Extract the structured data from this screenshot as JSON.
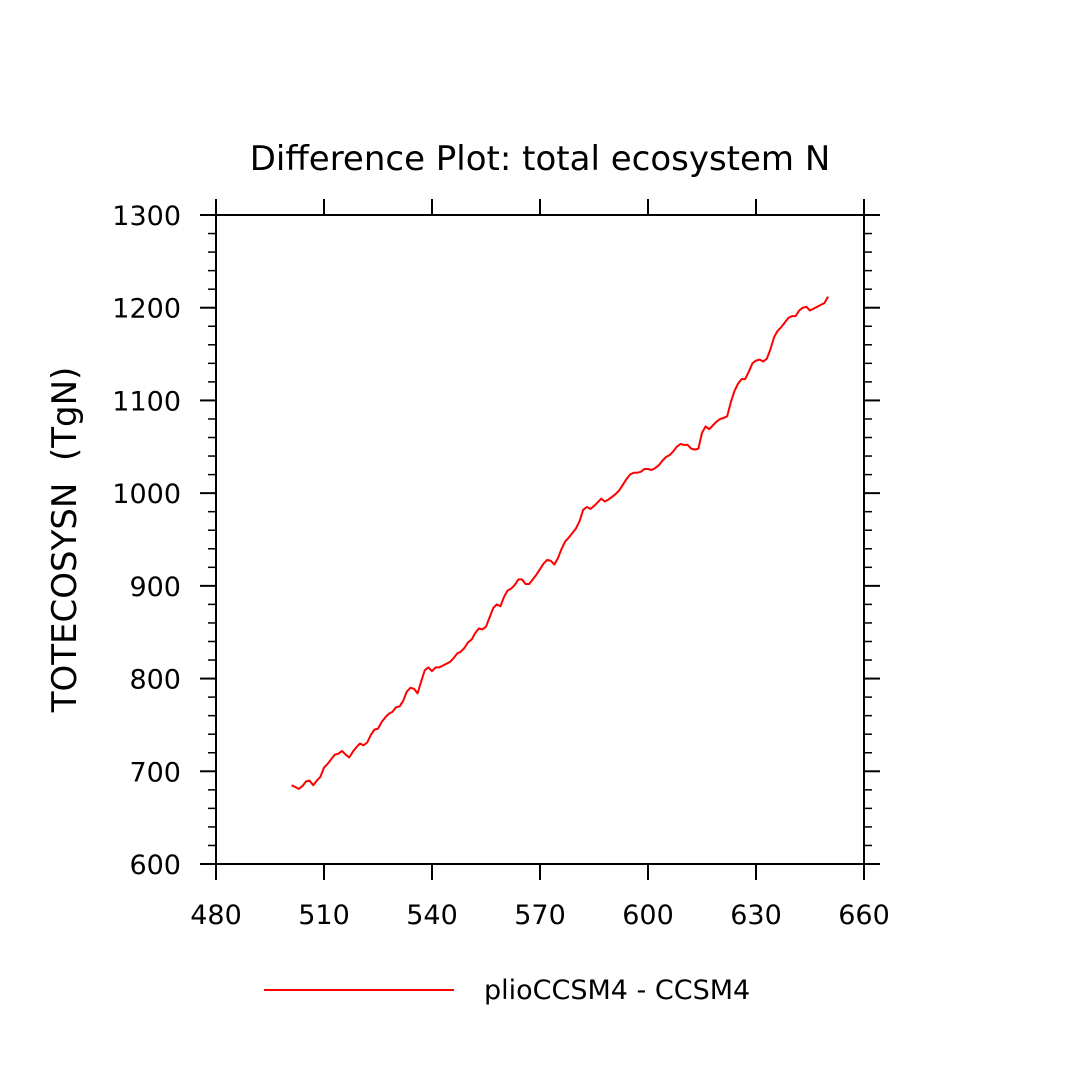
{
  "chart_data": {
    "type": "line",
    "title": "Difference Plot: total ecosystem N",
    "ylabel": "TOTECOSYSN  (TgN)",
    "xlabel": "",
    "xlim": [
      480,
      660
    ],
    "ylim": [
      600,
      1300
    ],
    "xticks": [
      480,
      510,
      540,
      570,
      600,
      630,
      660
    ],
    "yticks": [
      600,
      700,
      800,
      900,
      1000,
      1100,
      1200,
      1300
    ],
    "xtick_labels": [
      "480",
      "510",
      "540",
      "570",
      "600",
      "630",
      "660"
    ],
    "ytick_labels": [
      "600",
      "700",
      "800",
      "900",
      "1000",
      "1100",
      "1200",
      "1300"
    ],
    "grid": false,
    "legend_position": "bottom",
    "series": [
      {
        "name": "plioCCSM4 - CCSM4",
        "color": "#ff0000",
        "x": [
          501,
          502,
          503,
          504,
          505,
          506,
          507,
          508,
          509,
          510,
          511,
          512,
          513,
          514,
          515,
          516,
          517,
          518,
          519,
          520,
          521,
          522,
          523,
          524,
          525,
          526,
          527,
          528,
          529,
          530,
          531,
          532,
          533,
          534,
          535,
          536,
          537,
          538,
          539,
          540,
          541,
          542,
          543,
          544,
          545,
          546,
          547,
          548,
          549,
          550,
          551,
          552,
          553,
          554,
          555,
          556,
          557,
          558,
          559,
          560,
          561,
          562,
          563,
          564,
          565,
          566,
          567,
          568,
          569,
          570,
          571,
          572,
          573,
          574,
          575,
          576,
          577,
          578,
          579,
          580,
          581,
          582,
          583,
          584,
          585,
          586,
          587,
          588,
          589,
          590,
          591,
          592,
          593,
          594,
          595,
          596,
          597,
          598,
          599,
          600,
          601,
          602,
          603,
          604,
          605,
          606,
          607,
          608,
          609,
          610,
          611,
          612,
          613,
          614,
          615,
          616,
          617,
          618,
          619,
          620,
          621,
          622,
          623,
          624,
          625,
          626,
          627,
          628,
          629,
          630,
          631,
          632,
          633,
          634,
          635,
          636,
          637,
          638,
          639,
          640,
          641,
          642,
          643,
          644,
          645,
          646,
          647,
          648,
          649,
          650
        ],
        "y": [
          685,
          683,
          681,
          684,
          689,
          690,
          685,
          690,
          694,
          704,
          708,
          713,
          718,
          719,
          722,
          718,
          715,
          721,
          726,
          730,
          728,
          731,
          739,
          745,
          746,
          753,
          758,
          762,
          764,
          769,
          770,
          776,
          786,
          790,
          789,
          784,
          797,
          809,
          812,
          808,
          812,
          812,
          814,
          816,
          818,
          822,
          827,
          829,
          833,
          839,
          842,
          849,
          854,
          853,
          856,
          866,
          876,
          880,
          878,
          888,
          895,
          897,
          901,
          907,
          907,
          902,
          902,
          907,
          912,
          918,
          924,
          928,
          927,
          923,
          930,
          940,
          948,
          952,
          957,
          962,
          970,
          982,
          985,
          983,
          986,
          990,
          994,
          991,
          993,
          996,
          999,
          1003,
          1009,
          1015,
          1020,
          1022,
          1022,
          1023,
          1026,
          1026,
          1025,
          1027,
          1030,
          1035,
          1039,
          1041,
          1045,
          1050,
          1053,
          1052,
          1052,
          1048,
          1047,
          1048,
          1065,
          1072,
          1069,
          1073,
          1077,
          1080,
          1081,
          1083,
          1098,
          1110,
          1118,
          1123,
          1123,
          1131,
          1140,
          1143,
          1144,
          1142,
          1145,
          1155,
          1168,
          1175,
          1179,
          1184,
          1189,
          1191,
          1191,
          1197,
          1200,
          1201,
          1197,
          1199,
          1201,
          1203,
          1205,
          1212
        ]
      }
    ]
  },
  "legend": {
    "label": "plioCCSM4 - CCSM4"
  }
}
